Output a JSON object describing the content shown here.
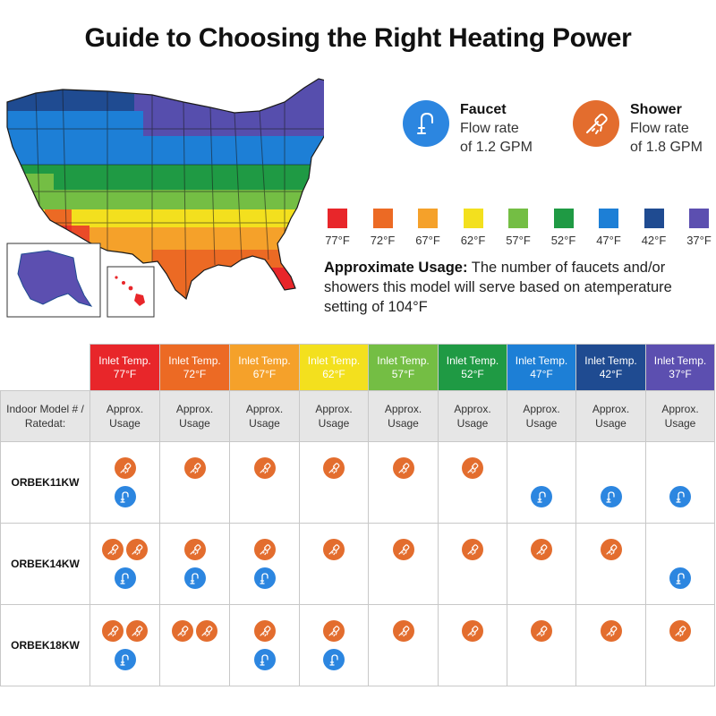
{
  "title": "Guide to Choosing the Right Heating Power",
  "legend": {
    "faucet": {
      "label": "Faucet",
      "line1": "Flow rate",
      "line2": "of 1.2 GPM",
      "icon": "faucet-icon",
      "color": "#2c86e0"
    },
    "shower": {
      "label": "Shower",
      "line1": "Flow rate",
      "line2": "of 1.8 GPM",
      "icon": "shower-icon",
      "color": "#e36d2e"
    }
  },
  "temperatures": [
    {
      "label": "77°F",
      "color": "#e8262a"
    },
    {
      "label": "72°F",
      "color": "#ec6a24"
    },
    {
      "label": "67°F",
      "color": "#f5a12a"
    },
    {
      "label": "62°F",
      "color": "#f3e01e"
    },
    {
      "label": "57°F",
      "color": "#74be44"
    },
    {
      "label": "52°F",
      "color": "#1f9a44"
    },
    {
      "label": "47°F",
      "color": "#1d7fd6"
    },
    {
      "label": "42°F",
      "color": "#1f4b91"
    },
    {
      "label": "37°F",
      "color": "#5c4fb0"
    }
  ],
  "usage_note": {
    "bold": "Approximate Usage:",
    "text": " The number of faucets and/or showers this model will serve based on atemperature setting of 104°F"
  },
  "table": {
    "inlet_label": "Inlet Temp.",
    "model_header": "Indoor Model # / Ratedat:",
    "approx_usage": "Approx. Usage",
    "models": [
      {
        "name": "ORBEK11KW",
        "cells": [
          {
            "showers": 1,
            "faucets": 1
          },
          {
            "showers": 1,
            "faucets": 0
          },
          {
            "showers": 1,
            "faucets": 0
          },
          {
            "showers": 1,
            "faucets": 0
          },
          {
            "showers": 1,
            "faucets": 0
          },
          {
            "showers": 1,
            "faucets": 0
          },
          {
            "showers": 0,
            "faucets": 1
          },
          {
            "showers": 0,
            "faucets": 1
          },
          {
            "showers": 0,
            "faucets": 1
          }
        ]
      },
      {
        "name": "ORBEK14KW",
        "cells": [
          {
            "showers": 2,
            "faucets": 1
          },
          {
            "showers": 1,
            "faucets": 1
          },
          {
            "showers": 1,
            "faucets": 1
          },
          {
            "showers": 1,
            "faucets": 0
          },
          {
            "showers": 1,
            "faucets": 0
          },
          {
            "showers": 1,
            "faucets": 0
          },
          {
            "showers": 1,
            "faucets": 0
          },
          {
            "showers": 1,
            "faucets": 0
          },
          {
            "showers": 0,
            "faucets": 1
          }
        ]
      },
      {
        "name": "ORBEK18KW",
        "cells": [
          {
            "showers": 2,
            "faucets": 1
          },
          {
            "showers": 2,
            "faucets": 0
          },
          {
            "showers": 1,
            "faucets": 1
          },
          {
            "showers": 1,
            "faucets": 1
          },
          {
            "showers": 1,
            "faucets": 0
          },
          {
            "showers": 1,
            "faucets": 0
          },
          {
            "showers": 1,
            "faucets": 0
          },
          {
            "showers": 1,
            "faucets": 0
          },
          {
            "showers": 1,
            "faucets": 0
          }
        ]
      }
    ]
  }
}
